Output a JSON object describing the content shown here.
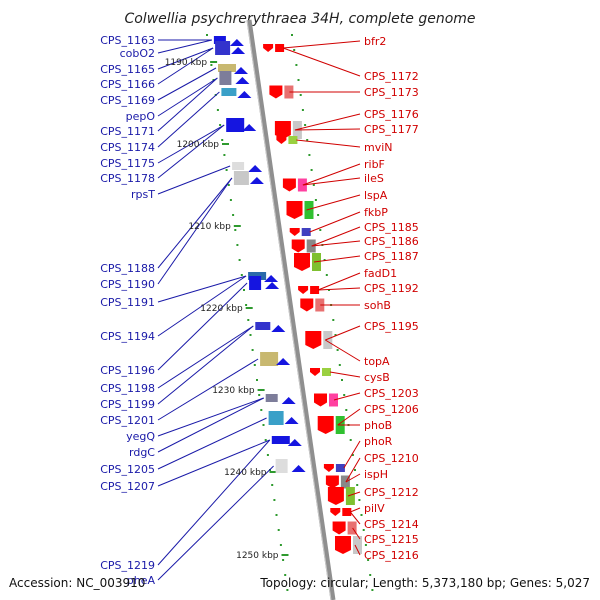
{
  "title": "Colwellia psychrerythraea 34H, complete genome",
  "footer": {
    "accession": "Accession: NC_003910",
    "summary": "Topology: circular; Length: 5,373,180 bp; Genes: 5,027"
  },
  "kbp_marks": [
    "1190 kbp",
    "1200 kbp",
    "1210 kbp",
    "1220 kbp",
    "1230 kbp",
    "1240 kbp",
    "1250 kbp"
  ],
  "genes_left": [
    "CPS_1163",
    "cobO2",
    "CPS_1165",
    "CPS_1166",
    "CPS_1169",
    "pepO",
    "CPS_1171",
    "CPS_1174",
    "CPS_1175",
    "CPS_1178",
    "rpsT",
    "CPS_1188",
    "CPS_1190",
    "CPS_1191",
    "CPS_1194",
    "CPS_1196",
    "CPS_1198",
    "CPS_1199",
    "CPS_1201",
    "yegQ",
    "rdgC",
    "CPS_1205",
    "CPS_1207",
    "CPS_1219",
    "pheA"
  ],
  "genes_right": [
    "bfr2",
    "CPS_1172",
    "CPS_1173",
    "CPS_1176",
    "CPS_1177",
    "mviN",
    "ribF",
    "ileS",
    "lspA",
    "fkbP",
    "CPS_1185",
    "CPS_1186",
    "CPS_1187",
    "fadD1",
    "CPS_1192",
    "sohB",
    "CPS_1195",
    "topA",
    "cysB",
    "CPS_1203",
    "CPS_1206",
    "phoB",
    "phoR",
    "CPS_1210",
    "ispH",
    "CPS_1212",
    "pilV",
    "CPS_1214",
    "CPS_1215",
    "CPS_1216"
  ],
  "colors": {
    "left_label": "#1a1aa8",
    "right_label": "#d00000",
    "axis": "#9a9a9a",
    "tick": "#2e9a2e",
    "forward_gene": "#1515e0",
    "reverse_gene": "#ff0000"
  }
}
